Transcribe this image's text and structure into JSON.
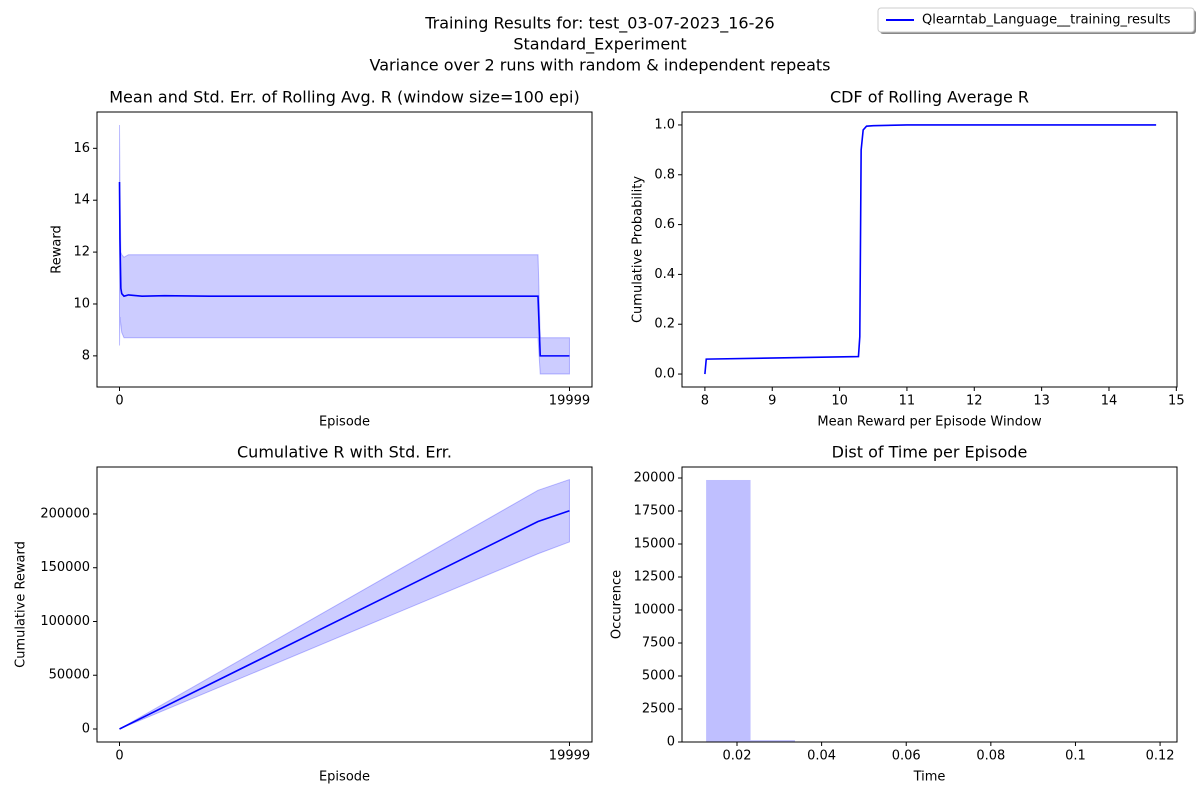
{
  "suptitle": [
    "Training Results for: test_03-07-2023_16-26",
    "Standard_Experiment",
    "Variance over 2 runs with random & independent repeats"
  ],
  "legend": {
    "label": "Qlearntab_Language__training_results",
    "color": "#0000ff",
    "loc": "upper right"
  },
  "chart_data": [
    {
      "type": "line",
      "title": "Mean and Std. Err. of Rolling Avg. R (window size=100 epi)",
      "xlabel": "Episode",
      "ylabel": "Reward",
      "x": [
        0,
        20,
        60,
        100,
        200,
        400,
        1000,
        2000,
        4000,
        6000,
        8000,
        10000,
        12000,
        14000,
        16000,
        18000,
        18600,
        18700,
        19999
      ],
      "values": [
        14.7,
        12.5,
        10.6,
        10.4,
        10.3,
        10.35,
        10.3,
        10.32,
        10.3,
        10.3,
        10.3,
        10.3,
        10.3,
        10.3,
        10.3,
        10.3,
        10.3,
        8.0,
        8.0
      ],
      "upper": [
        16.9,
        14.5,
        12.0,
        11.9,
        11.8,
        11.9,
        11.9,
        11.9,
        11.9,
        11.9,
        11.9,
        11.9,
        11.9,
        11.9,
        11.9,
        11.9,
        11.9,
        8.7,
        8.7
      ],
      "lower": [
        8.4,
        9.5,
        9.2,
        8.9,
        8.7,
        8.7,
        8.7,
        8.7,
        8.7,
        8.7,
        8.7,
        8.7,
        8.7,
        8.7,
        8.7,
        8.7,
        8.7,
        7.3,
        7.3
      ],
      "color": "#0000ff",
      "band_color": "#0000ff",
      "xlim": [
        -1000,
        21000
      ],
      "xticks": [
        0,
        19999
      ],
      "ylim": [
        6.8,
        17.4
      ],
      "yticks": [
        8,
        10,
        12,
        14,
        16
      ]
    },
    {
      "type": "line",
      "title": "CDF of Rolling Average R",
      "xlabel": "Mean Reward per Episode Window",
      "ylabel": "Cumulative Probability",
      "x": [
        8.0,
        8.02,
        10.28,
        10.3,
        10.32,
        10.35,
        10.4,
        10.5,
        11,
        14.7
      ],
      "values": [
        0,
        0.06,
        0.07,
        0.15,
        0.9,
        0.98,
        0.995,
        0.997,
        1.0,
        1.0
      ],
      "color": "#0000ff",
      "xlim": [
        7.66,
        15.01
      ],
      "xticks": [
        8,
        9,
        10,
        11,
        12,
        13,
        14,
        15
      ],
      "ylim": [
        -0.052,
        1.052
      ],
      "yticks": [
        {
          "value": 0,
          "label": "0.0"
        },
        {
          "value": 0.2,
          "label": "0.2"
        },
        {
          "value": 0.4,
          "label": "0.4"
        },
        {
          "value": 0.6,
          "label": "0.6"
        },
        {
          "value": 0.8,
          "label": "0.8"
        },
        {
          "value": 1,
          "label": "1.0"
        }
      ]
    },
    {
      "type": "line",
      "title": "Cumulative R with Std. Err.",
      "xlabel": "Episode",
      "ylabel": "Cumulative Reward",
      "x": [
        0,
        18600,
        19999
      ],
      "values": [
        0,
        193000,
        203000
      ],
      "upper": [
        0,
        222000,
        232000
      ],
      "lower": [
        0,
        163000,
        174000
      ],
      "color": "#0000ff",
      "band_color": "#0000ff",
      "xlim": [
        -1000,
        21000
      ],
      "xticks": [
        0,
        19999
      ],
      "ylim": [
        -12100,
        243700
      ],
      "yticks": [
        0,
        50000,
        100000,
        150000,
        200000
      ]
    },
    {
      "type": "histogram",
      "title": "Dist of Time per Episode",
      "xlabel": "Time",
      "ylabel": "Occurence",
      "bins": [
        0.0127,
        0.0232,
        0.0337,
        0.0442,
        0.0547,
        0.0652,
        0.0757,
        0.0862,
        0.0967,
        0.1072,
        0.1177
      ],
      "values": [
        19850,
        140,
        5,
        2,
        1,
        0,
        0,
        0,
        1,
        1
      ],
      "color": "#bfbfff",
      "xlim": [
        0.007,
        0.124
      ],
      "xticks": [
        0.02,
        0.04,
        0.06,
        0.08,
        0.1,
        0.12
      ],
      "ylim": [
        0,
        20833
      ],
      "yticks": [
        0,
        2500,
        5000,
        7500,
        10000,
        12500,
        15000,
        17500,
        20000
      ]
    }
  ]
}
